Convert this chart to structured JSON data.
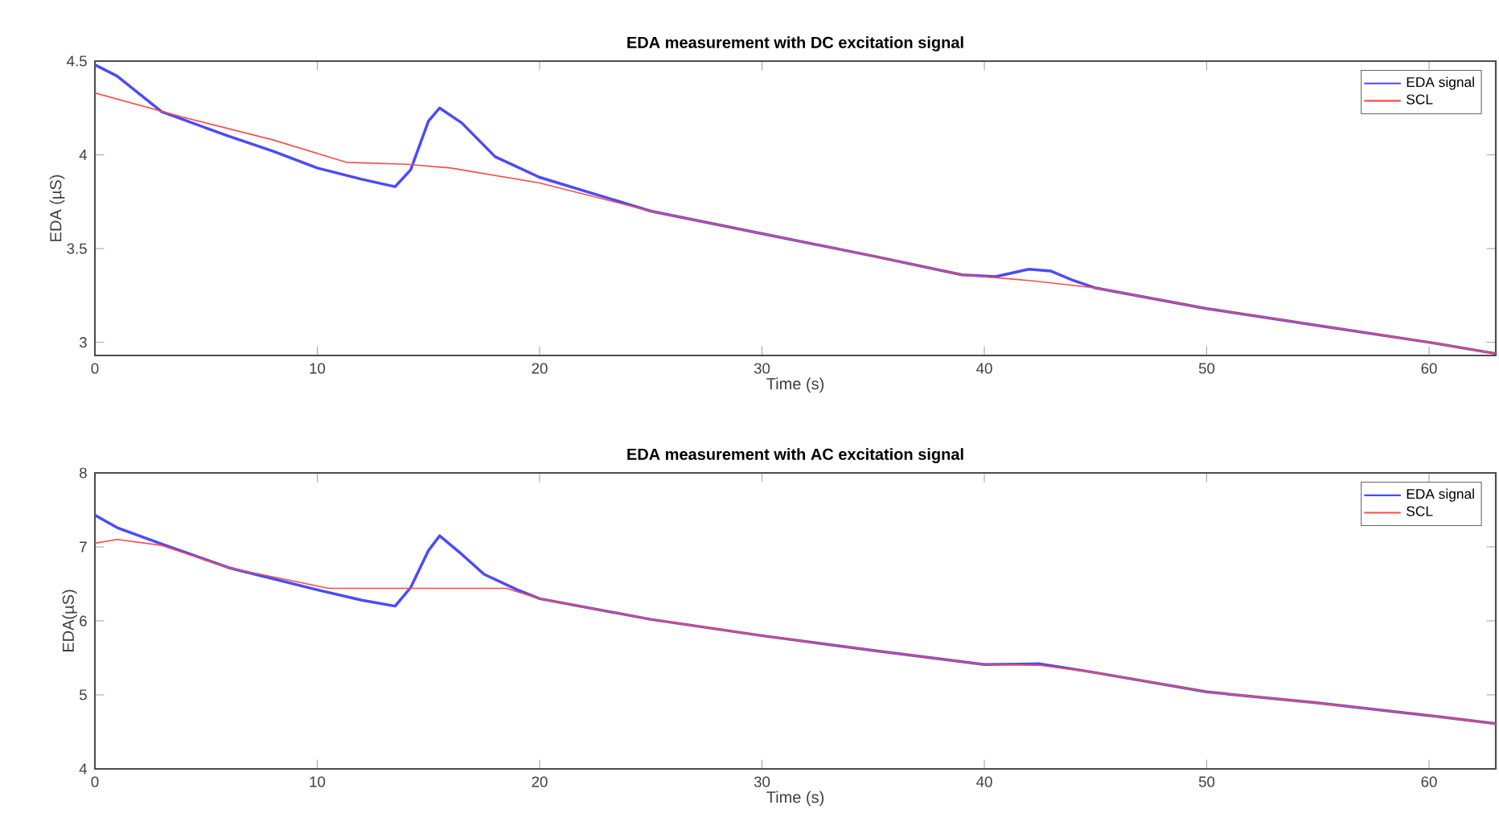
{
  "chart_data": [
    {
      "type": "line",
      "title": "EDA measurement with DC excitation signal",
      "xlabel": "Time (s)",
      "ylabel": "EDA (µS)",
      "xlim": [
        0,
        63
      ],
      "ylim": [
        2.93,
        4.5
      ],
      "xticks": [
        0,
        10,
        20,
        30,
        40,
        50,
        60
      ],
      "yticks": [
        3,
        3.5,
        4,
        4.5
      ],
      "legend": "top right",
      "grid": false,
      "series": [
        {
          "name": "EDA signal",
          "color": "#4a4aff",
          "x": [
            0,
            1,
            3,
            6,
            8,
            10,
            12,
            13.5,
            14.2,
            15,
            15.5,
            16.5,
            18,
            20,
            25,
            30,
            35,
            39,
            40.5,
            42,
            43,
            44,
            45,
            50,
            55,
            60,
            63
          ],
          "values": [
            4.48,
            4.42,
            4.23,
            4.1,
            4.02,
            3.93,
            3.87,
            3.83,
            3.92,
            4.18,
            4.25,
            4.17,
            3.99,
            3.88,
            3.7,
            3.58,
            3.46,
            3.36,
            3.35,
            3.39,
            3.38,
            3.33,
            3.29,
            3.18,
            3.09,
            3.0,
            2.94
          ]
        },
        {
          "name": "SCL",
          "color": "#ff4a4a",
          "x": [
            0,
            4,
            8,
            11.3,
            14,
            16,
            18,
            20,
            25,
            30,
            35,
            39,
            42,
            45,
            50,
            55,
            60,
            63
          ],
          "values": [
            4.33,
            4.2,
            4.08,
            3.96,
            3.95,
            3.93,
            3.89,
            3.85,
            3.7,
            3.58,
            3.46,
            3.36,
            3.33,
            3.29,
            3.18,
            3.09,
            3.0,
            2.94
          ]
        }
      ]
    },
    {
      "type": "line",
      "title": "EDA measurement with AC excitation signal",
      "xlabel": "Time (s)",
      "ylabel": "EDA(µS)",
      "xlim": [
        0,
        63
      ],
      "ylim": [
        4,
        8
      ],
      "xticks": [
        0,
        10,
        20,
        30,
        40,
        50,
        60
      ],
      "yticks": [
        4,
        5,
        6,
        7,
        8
      ],
      "legend": "top right",
      "grid": false,
      "series": [
        {
          "name": "EDA signal",
          "color": "#4a4aff",
          "x": [
            0,
            1,
            3,
            6,
            10,
            12,
            13.5,
            14.2,
            15,
            15.5,
            16.5,
            17.5,
            19,
            20,
            25,
            30,
            35,
            40,
            42.5,
            45,
            50,
            55,
            60,
            63
          ],
          "values": [
            7.43,
            7.26,
            7.04,
            6.72,
            6.42,
            6.28,
            6.2,
            6.45,
            6.95,
            7.15,
            6.9,
            6.63,
            6.42,
            6.3,
            6.02,
            5.8,
            5.6,
            5.41,
            5.42,
            5.3,
            5.04,
            4.89,
            4.72,
            4.61
          ]
        },
        {
          "name": "SCL",
          "color": "#ff4a4a",
          "x": [
            0,
            1,
            3,
            6,
            10.5,
            14,
            18.5,
            20,
            25,
            30,
            35,
            40,
            42.5,
            45,
            50,
            55,
            60,
            63
          ],
          "values": [
            7.05,
            7.1,
            7.02,
            6.72,
            6.44,
            6.44,
            6.44,
            6.3,
            6.02,
            5.8,
            5.6,
            5.41,
            5.4,
            5.3,
            5.04,
            4.89,
            4.72,
            4.61
          ]
        }
      ]
    }
  ]
}
